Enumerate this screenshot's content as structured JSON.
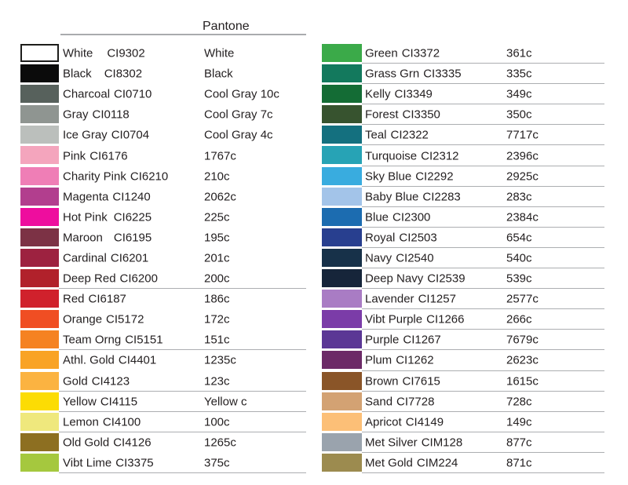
{
  "header": {
    "pantone_label": "Pantone"
  },
  "chart_data": {
    "type": "table",
    "columns": [
      "color_name",
      "ci_code",
      "pantone_code"
    ],
    "left_rows": [
      {
        "name": "White",
        "code": "CI9302",
        "pantone": "White",
        "hex": "#ffffff",
        "border": true,
        "gap": 18
      },
      {
        "name": "Black",
        "code": "CI8302",
        "pantone": "Black",
        "hex": "#0b0b0b",
        "gap": 16
      },
      {
        "name": "Charcoal",
        "code": "CI0710",
        "pantone": "Cool Gray 10c",
        "hex": "#57615c"
      },
      {
        "name": "Gray",
        "code": "CI0118",
        "pantone": "Cool Gray 7c",
        "hex": "#8f9591"
      },
      {
        "name": "Ice Gray",
        "code": "CI0704",
        "pantone": "Cool Gray 4c",
        "hex": "#bbbfbc"
      },
      {
        "name": "Pink",
        "code": "CI6176",
        "pantone": "1767c",
        "hex": "#f4a5bd"
      },
      {
        "name": "Charity Pink",
        "code": "CI6210",
        "pantone": "210c",
        "hex": "#ef7eb6"
      },
      {
        "name": "Magenta",
        "code": "CI1240",
        "pantone": "2062c",
        "hex": "#b23e8e"
      },
      {
        "name": "Hot Pink",
        "code": "CI6225",
        "pantone": "225c",
        "hex": "#ee0d9e",
        "gap": 8
      },
      {
        "name": "Maroon",
        "code": "CI6195",
        "pantone": "195c",
        "hex": "#7c3245",
        "gap": 14
      },
      {
        "name": "Cardinal",
        "code": "CI6201",
        "pantone": "201c",
        "hex": "#9d2240"
      },
      {
        "name": "Deep Red",
        "code": "CI6200",
        "pantone": "200c",
        "hex": "#b1212b",
        "underline": true
      },
      {
        "name": "Red",
        "code": "CI6187",
        "pantone": "186c",
        "hex": "#d0212c"
      },
      {
        "name": "Orange",
        "code": "CI5172",
        "pantone": "172c",
        "hex": "#f04e23"
      },
      {
        "name": "Team Orng",
        "code": "CI5151",
        "pantone": "151c",
        "hex": "#f58222",
        "underline": true
      },
      {
        "name": "Athl. Gold",
        "code": "CI4401",
        "pantone": "1235c",
        "hex": "#f9a325"
      },
      {
        "name": "Gold",
        "code": "CI4123",
        "pantone": "123c",
        "hex": "#fbb341",
        "underline": true
      },
      {
        "name": "Yellow",
        "code": "CI4115",
        "pantone": "Yellow c",
        "hex": "#fcdc04",
        "underline": true
      },
      {
        "name": "Lemon",
        "code": "CI4100",
        "pantone": "100c",
        "hex": "#efe87d",
        "underline": true
      },
      {
        "name": "Old Gold",
        "code": "CI4126",
        "pantone": "1265c",
        "hex": "#8d6f21"
      },
      {
        "name": "Vibt Lime",
        "code": "CI3375",
        "pantone": "375c",
        "hex": "#a5c83e",
        "underline": true
      }
    ],
    "right_rows": [
      {
        "name": "Green",
        "code": "CI3372",
        "pantone": "361c",
        "hex": "#3baa49",
        "underline": true
      },
      {
        "name": "Grass Grn",
        "code": "CI3335",
        "pantone": "335c",
        "hex": "#13795d",
        "underline": true
      },
      {
        "name": "Kelly",
        "code": "CI3349",
        "pantone": "349c",
        "hex": "#146c35",
        "underline": true
      },
      {
        "name": "Forest",
        "code": "CI3350",
        "pantone": "350c",
        "hex": "#37532f",
        "underline": true
      },
      {
        "name": "Teal",
        "code": "CI2322",
        "pantone": "7717c",
        "hex": "#14707f",
        "underline": true
      },
      {
        "name": "Turquoise",
        "code": "CI2312",
        "pantone": "2396c",
        "hex": "#27a3b5",
        "underline": true
      },
      {
        "name": "Sky Blue",
        "code": "CI2292",
        "pantone": "2925c",
        "hex": "#39acdf",
        "underline": true
      },
      {
        "name": "Baby Blue",
        "code": "CI2283",
        "pantone": "283c",
        "hex": "#a3c4e9",
        "underline": true
      },
      {
        "name": "Blue",
        "code": "CI2300",
        "pantone": "2384c",
        "hex": "#1c6cb0",
        "underline": true
      },
      {
        "name": "Royal",
        "code": "CI2503",
        "pantone": "654c",
        "hex": "#283f8f",
        "underline": true
      },
      {
        "name": "Navy",
        "code": "CI2540",
        "pantone": "540c",
        "hex": "#173149",
        "underline": true
      },
      {
        "name": "Deep Navy",
        "code": "CI2539",
        "pantone": "539c",
        "hex": "#16253a",
        "underline": true
      },
      {
        "name": "Lavender",
        "code": "CI1257",
        "pantone": "2577c",
        "hex": "#a97cc4",
        "underline": true
      },
      {
        "name": "Vibt Purple",
        "code": "CI1266",
        "pantone": "266c",
        "hex": "#7b3ca8",
        "underline": true
      },
      {
        "name": "Purple",
        "code": "CI1267",
        "pantone": "7679c",
        "hex": "#5b3795",
        "underline": true
      },
      {
        "name": "Plum",
        "code": "CI1262",
        "pantone": "2623c",
        "hex": "#6c2a67",
        "underline": true
      },
      {
        "name": "Brown",
        "code": "CI7615",
        "pantone": "1615c",
        "hex": "#8a5528",
        "underline": true
      },
      {
        "name": "Sand",
        "code": "CI7728",
        "pantone": "728c",
        "hex": "#d3a273",
        "underline": true
      },
      {
        "name": "Apricot",
        "code": "CI4149",
        "pantone": "149c",
        "hex": "#fcbf77",
        "underline": true
      },
      {
        "name": "Met Silver",
        "code": "CIM128",
        "pantone": "877c",
        "hex": "#9aa3ad",
        "underline": true
      },
      {
        "name": "Met Gold",
        "code": "CIM224",
        "pantone": "871c",
        "hex": "#9c8b4f",
        "underline": true
      }
    ]
  }
}
